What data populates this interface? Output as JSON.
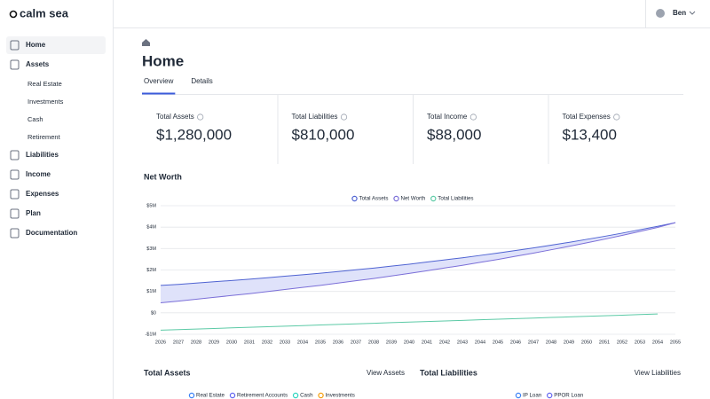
{
  "sidebar": {
    "logo": "calm sea",
    "nav": [
      {
        "label": "Home"
      },
      {
        "label": "Assets",
        "children": [
          "Real Estate",
          "Investments",
          "Cash",
          "Retirement"
        ]
      },
      {
        "label": "Liabilities"
      },
      {
        "label": "Income"
      },
      {
        "label": "Expenses"
      },
      {
        "label": "Plan"
      },
      {
        "label": "Documentation"
      }
    ]
  },
  "topbar": {
    "user": "Ben"
  },
  "header": {
    "title": "Home",
    "tabs": [
      "Overview",
      "Details"
    ]
  },
  "stats": [
    {
      "label": "Total Assets",
      "value": "$1,280,000"
    },
    {
      "label": "Total Liabilities",
      "value": "$810,000"
    },
    {
      "label": "Total Income",
      "value": "$88,000"
    },
    {
      "label": "Total Expenses",
      "value": "$13,400"
    }
  ],
  "chart_data": {
    "type": "line",
    "title": "Net Worth",
    "categories": [
      "2026",
      "2027",
      "2028",
      "2029",
      "2030",
      "2031",
      "2032",
      "2033",
      "2034",
      "2035",
      "2036",
      "2037",
      "2038",
      "2039",
      "2040",
      "2041",
      "2042",
      "2043",
      "2044",
      "2045",
      "2046",
      "2047",
      "2048",
      "2049",
      "2050",
      "2051",
      "2052",
      "2053",
      "2054",
      "2055"
    ],
    "series": [
      {
        "name": "Total Assets",
        "color": "#4f63d2",
        "values": [
          1280000,
          1330000,
          1390000,
          1450000,
          1510000,
          1570000,
          1640000,
          1710000,
          1780000,
          1850000,
          1930000,
          2010000,
          2090000,
          2180000,
          2270000,
          2370000,
          2470000,
          2570000,
          2680000,
          2790000,
          2910000,
          3030000,
          3160000,
          3290000,
          3430000,
          3570000,
          3720000,
          3880000,
          4040000,
          4210000
        ]
      },
      {
        "name": "Net Worth",
        "color": "#7b6fd8",
        "values": [
          470000,
          547000,
          634000,
          721000,
          808000,
          895000,
          992000,
          1089000,
          1186000,
          1283000,
          1390000,
          1497000,
          1604000,
          1721000,
          1838000,
          1965000,
          2092000,
          2219000,
          2356000,
          2493000,
          2640000,
          2787000,
          2944000,
          3101000,
          3268000,
          3435000,
          3612000,
          3799000,
          3986000,
          4210000
        ]
      },
      {
        "name": "Total Liabilities",
        "color": "#5ccaa6",
        "values": [
          -810000,
          -783000,
          -756000,
          -729000,
          -702000,
          -675000,
          -648000,
          -621000,
          -594000,
          -567000,
          -540000,
          -513000,
          -486000,
          -459000,
          -432000,
          -405000,
          -378000,
          -351000,
          -324000,
          -297000,
          -270000,
          -243000,
          -216000,
          -189000,
          -162000,
          -135000,
          -108000,
          -81000,
          -54000,
          null
        ]
      }
    ],
    "band_color": "#dfe2fa",
    "ylim": [
      -1000000,
      5000000
    ],
    "yticks": [
      {
        "value": -1000000,
        "label": "-$1M"
      },
      {
        "value": 0,
        "label": "$0"
      },
      {
        "value": 1000000,
        "label": "$1M"
      },
      {
        "value": 2000000,
        "label": "$2M"
      },
      {
        "value": 3000000,
        "label": "$3M"
      },
      {
        "value": 4000000,
        "label": "$4M"
      },
      {
        "value": 5000000,
        "label": "$5M"
      }
    ],
    "grid": true
  },
  "sections": [
    {
      "title": "Total Assets",
      "link": "View Assets",
      "legend": [
        "Real Estate",
        "Retirement Accounts",
        "Cash",
        "Investments"
      ]
    },
    {
      "title": "Total Liabilities",
      "link": "View Liabilities",
      "legend": [
        "IP Loan",
        "PPOR Loan"
      ]
    }
  ]
}
